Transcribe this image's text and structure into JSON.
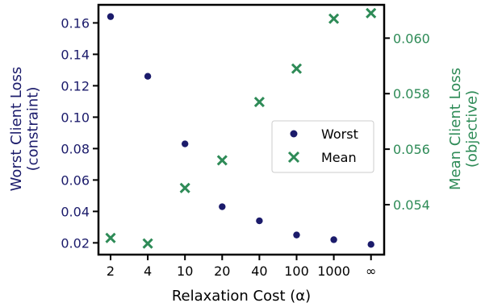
{
  "colors": {
    "worst": "#1b1b6b",
    "mean": "#2e8b57",
    "axis": "#000000"
  },
  "chart_data": {
    "type": "scatter",
    "categories": [
      "2",
      "4",
      "10",
      "20",
      "40",
      "100",
      "1000",
      "∞"
    ],
    "xlabel": "Relaxation Cost (α)",
    "ylabel_left": "Worst Client Loss\n(constraint)",
    "ylabel_right": "Mean Client Loss\n(objective)",
    "y_left": {
      "lim": [
        0.0125,
        0.1715
      ],
      "ticks": [
        0.02,
        0.04,
        0.06,
        0.08,
        0.1,
        0.12,
        0.14,
        0.16
      ],
      "tick_labels": [
        "0.02",
        "0.04",
        "0.06",
        "0.08",
        "0.10",
        "0.12",
        "0.14",
        "0.16"
      ]
    },
    "y_right": {
      "lim": [
        0.0522,
        0.0612
      ],
      "ticks": [
        0.054,
        0.056,
        0.058,
        0.06
      ],
      "tick_labels": [
        "0.054",
        "0.056",
        "0.058",
        "0.060"
      ]
    },
    "series": [
      {
        "name": "Worst",
        "axis": "left",
        "marker": "dot",
        "values": [
          0.164,
          0.126,
          0.083,
          0.043,
          0.034,
          0.025,
          0.022,
          0.019
        ]
      },
      {
        "name": "Mean",
        "axis": "right",
        "marker": "x",
        "values": [
          0.0528,
          0.0526,
          0.0546,
          0.0556,
          0.0577,
          0.0589,
          0.0607,
          0.0609
        ]
      }
    ],
    "legend_position": "center-right",
    "grid": false
  }
}
